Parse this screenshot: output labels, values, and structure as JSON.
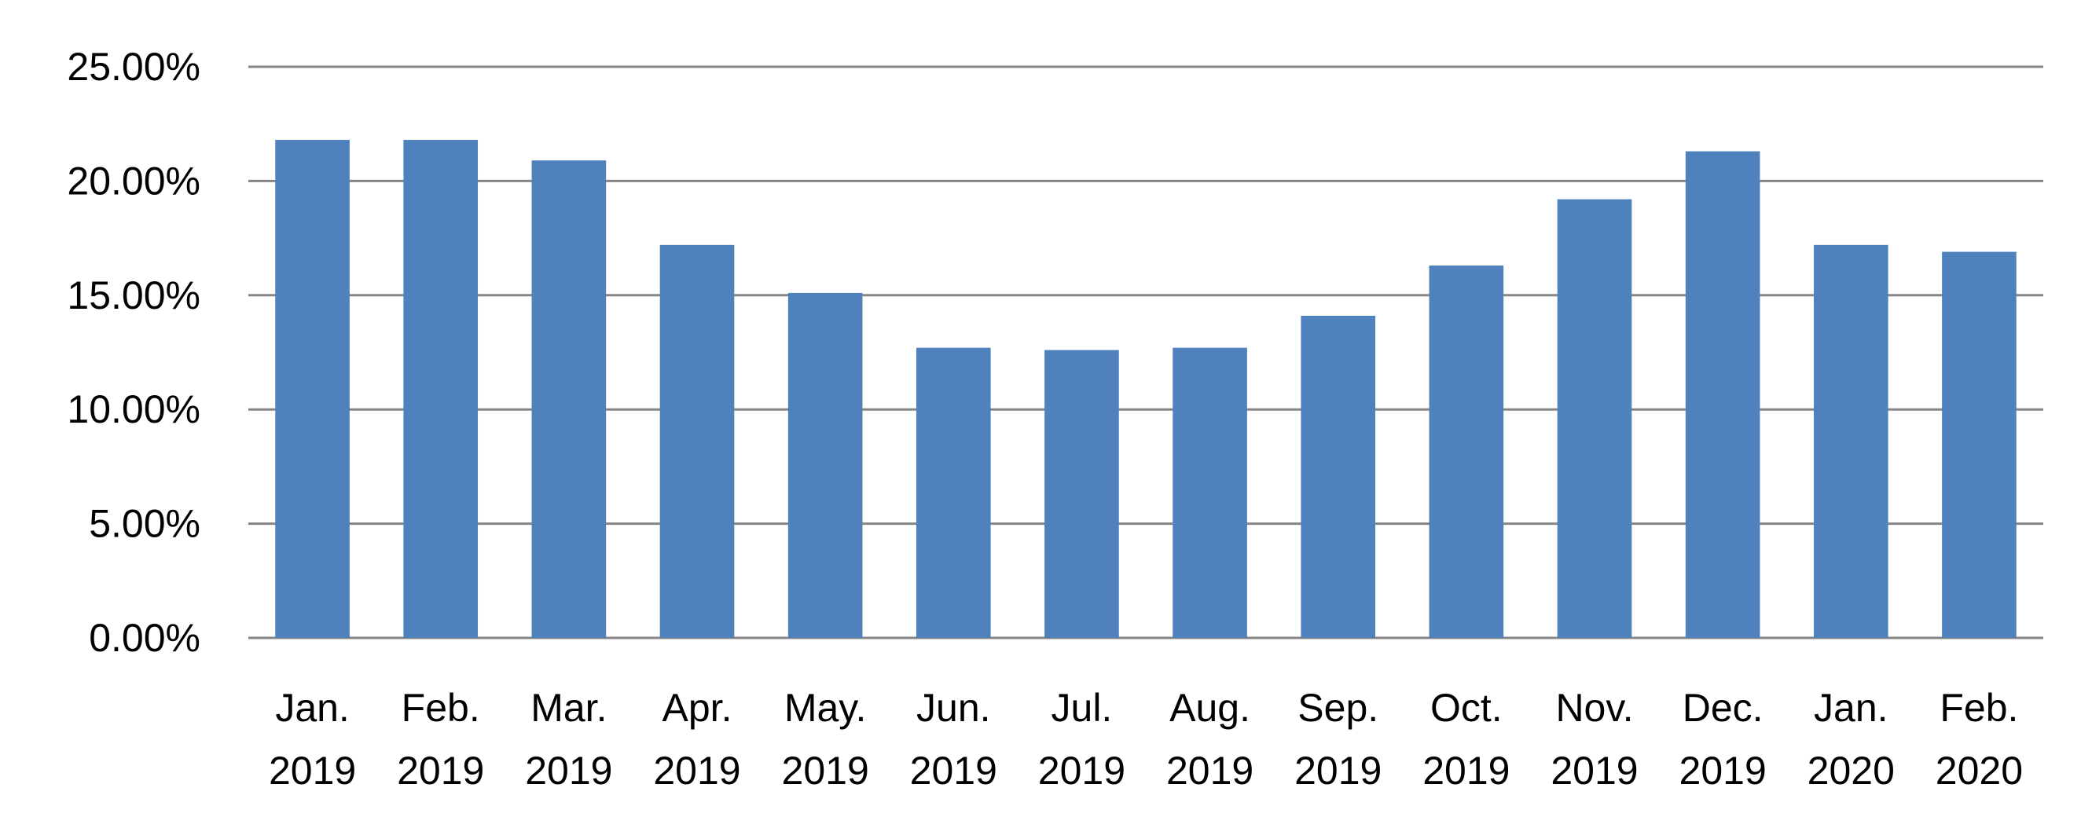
{
  "chart_data": {
    "type": "bar",
    "categories": [
      [
        "Jan.",
        "2019"
      ],
      [
        "Feb.",
        "2019"
      ],
      [
        "Mar.",
        "2019"
      ],
      [
        "Apr.",
        "2019"
      ],
      [
        "May.",
        "2019"
      ],
      [
        "Jun.",
        "2019"
      ],
      [
        "Jul.",
        "2019"
      ],
      [
        "Aug.",
        "2019"
      ],
      [
        "Sep.",
        "2019"
      ],
      [
        "Oct.",
        "2019"
      ],
      [
        "Nov.",
        "2019"
      ],
      [
        "Dec.",
        "2019"
      ],
      [
        "Jan.",
        "2020"
      ],
      [
        "Feb.",
        "2020"
      ]
    ],
    "values": [
      21.8,
      21.8,
      20.9,
      17.2,
      15.1,
      12.7,
      12.6,
      12.7,
      14.1,
      16.3,
      19.2,
      21.3,
      17.2,
      16.9
    ],
    "ylim": [
      0,
      25
    ],
    "y_ticks": [
      "0.00%",
      "5.00%",
      "10.00%",
      "15.00%",
      "20.00%",
      "25.00%"
    ],
    "y_tick_values": [
      0,
      5,
      10,
      15,
      20,
      25
    ],
    "bar_color": "#4F81BD",
    "grid_color": "#868686",
    "grid": true,
    "legend": "none"
  }
}
